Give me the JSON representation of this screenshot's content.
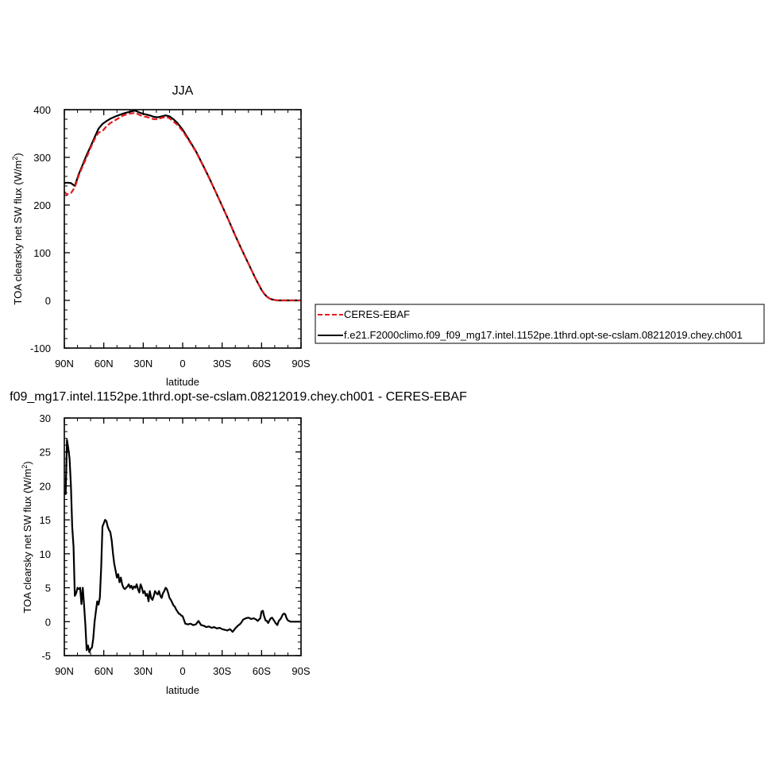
{
  "chart_data": [
    {
      "type": "line",
      "title": "JJA",
      "xlabel": "latitude",
      "ylabel_main": "TOA clearsky net SW flux (W/m",
      "ylabel_sup": "2",
      "ylabel_close": ")",
      "xlim": [
        90,
        -90
      ],
      "ylim": [
        -100,
        400
      ],
      "x_ticks": [
        {
          "value": 90,
          "label": "90N"
        },
        {
          "value": 60,
          "label": "60N"
        },
        {
          "value": 30,
          "label": "30N"
        },
        {
          "value": 0,
          "label": "0"
        },
        {
          "value": -30,
          "label": "30S"
        },
        {
          "value": -60,
          "label": "60S"
        },
        {
          "value": -90,
          "label": "90S"
        }
      ],
      "y_ticks": [
        {
          "value": 400,
          "label": "400"
        },
        {
          "value": 300,
          "label": "300"
        },
        {
          "value": 200,
          "label": "200"
        },
        {
          "value": 100,
          "label": "100"
        },
        {
          "value": 0,
          "label": "0"
        },
        {
          "value": -100,
          "label": "-100"
        }
      ],
      "series": [
        {
          "name": "CERES-EBAF",
          "color": "#e41a1c",
          "dash": true,
          "x": [
            90,
            88,
            85,
            82,
            79,
            76,
            73,
            70,
            67,
            64,
            61,
            58,
            55,
            50,
            45,
            40,
            36,
            32,
            28,
            25,
            22,
            19,
            16,
            13,
            10,
            7,
            4,
            0,
            -5,
            -10,
            -15,
            -20,
            -25,
            -30,
            -35,
            -40,
            -45,
            -50,
            -55,
            -60,
            -62,
            -64,
            -66,
            -68,
            -70,
            -72,
            -75,
            -80,
            -85,
            -90
          ],
          "y": [
            228,
            222,
            225,
            237,
            262,
            282,
            300,
            320,
            338,
            352,
            355,
            365,
            372,
            380,
            388,
            392,
            393,
            388,
            385,
            383,
            380,
            380,
            383,
            385,
            382,
            375,
            368,
            355,
            334,
            312,
            285,
            257,
            228,
            198,
            168,
            136,
            106,
            77,
            48,
            22,
            14,
            8,
            4,
            2,
            1,
            0,
            0,
            0,
            0,
            0
          ]
        },
        {
          "name": "f.e21.F2000climo.f09_f09_mg17.intel.1152pe.1thrd.opt-se-cslam.08212019.chey.ch001",
          "color": "#000000",
          "dash": false,
          "x": [
            90,
            88,
            85,
            82,
            79,
            76,
            73,
            70,
            67,
            64,
            61,
            58,
            55,
            50,
            45,
            40,
            36,
            32,
            28,
            25,
            22,
            19,
            16,
            13,
            10,
            7,
            4,
            0,
            -5,
            -10,
            -15,
            -20,
            -25,
            -30,
            -35,
            -40,
            -45,
            -50,
            -55,
            -60,
            -62,
            -64,
            -66,
            -68,
            -70,
            -72,
            -75,
            -80,
            -85,
            -90
          ],
          "y": [
            246,
            247,
            246,
            240,
            265,
            285,
            305,
            323,
            342,
            360,
            370,
            376,
            381,
            387,
            392,
            396,
            398,
            393,
            390,
            388,
            385,
            384,
            386,
            388,
            386,
            380,
            372,
            358,
            336,
            313,
            286,
            258,
            228,
            198,
            168,
            136,
            106,
            77,
            48,
            22,
            14,
            8,
            4,
            2,
            1,
            0,
            0,
            0,
            0,
            0
          ]
        }
      ],
      "legend_position": "right"
    },
    {
      "type": "line",
      "title": "f09_mg17.intel.1152pe.1thrd.opt-se-cslam.08212019.chey.ch001 - CERES-EBAF",
      "xlabel": "latitude",
      "ylabel_main": "TOA clearsky net SW flux (W/m",
      "ylabel_sup": "2",
      "ylabel_close": ")",
      "xlim": [
        90,
        -90
      ],
      "ylim": [
        -5,
        30
      ],
      "x_ticks": [
        {
          "value": 90,
          "label": "90N"
        },
        {
          "value": 60,
          "label": "60N"
        },
        {
          "value": 30,
          "label": "30N"
        },
        {
          "value": 0,
          "label": "0"
        },
        {
          "value": -30,
          "label": "30S"
        },
        {
          "value": -60,
          "label": "60S"
        },
        {
          "value": -90,
          "label": "90S"
        }
      ],
      "y_ticks": [
        {
          "value": 30,
          "label": "30"
        },
        {
          "value": 25,
          "label": "25"
        },
        {
          "value": 20,
          "label": "20"
        },
        {
          "value": 15,
          "label": "15"
        },
        {
          "value": 10,
          "label": "10"
        },
        {
          "value": 5,
          "label": "5"
        },
        {
          "value": 0,
          "label": "0"
        },
        {
          "value": -5,
          "label": "-5"
        }
      ],
      "series": [
        {
          "color": "#000000",
          "x": [
            90,
            89,
            88,
            87,
            86,
            85,
            84,
            83,
            82,
            81,
            80,
            79,
            78,
            77,
            76,
            75,
            74,
            73,
            72,
            71,
            70,
            69,
            68,
            67,
            66,
            65,
            64,
            63,
            62,
            61,
            60,
            59,
            58,
            57,
            56,
            55,
            54,
            53,
            52,
            51,
            50,
            49,
            48,
            47,
            46,
            45,
            44,
            43,
            42,
            41,
            40,
            39,
            38,
            37,
            36,
            35,
            34,
            33,
            32,
            31,
            30,
            29,
            28,
            27,
            26,
            25,
            24,
            23,
            22,
            21,
            20,
            19,
            18,
            17,
            16,
            15,
            14,
            13,
            12,
            11,
            10,
            9,
            8,
            7,
            6,
            5,
            4,
            3,
            2,
            1,
            0,
            -2,
            -4,
            -6,
            -8,
            -10,
            -12,
            -14,
            -16,
            -18,
            -20,
            -22,
            -24,
            -26,
            -28,
            -30,
            -32,
            -34,
            -36,
            -38,
            -40,
            -42,
            -44,
            -46,
            -48,
            -50,
            -52,
            -54,
            -56,
            -57,
            -58,
            -59,
            -60,
            -61,
            -62,
            -63,
            -64,
            -65,
            -66,
            -67,
            -68,
            -69,
            -70,
            -71,
            -72,
            -73,
            -74,
            -75,
            -76,
            -77,
            -78,
            -79,
            -80,
            -82,
            -84,
            -86,
            -88,
            -90
          ],
          "y": [
            19,
            18.8,
            26.8,
            25.5,
            24,
            20,
            14,
            11,
            3.8,
            4.2,
            5,
            4.8,
            5,
            2.6,
            5,
            2.5,
            -0.5,
            -4.2,
            -3.5,
            -4.5,
            -4,
            -3.8,
            -2.5,
            0,
            1.5,
            3,
            2.5,
            3.5,
            8,
            14,
            14.5,
            15,
            14.8,
            14,
            13.5,
            13.2,
            12,
            10,
            8.5,
            7.5,
            6.5,
            7,
            5.8,
            6.5,
            5.5,
            5,
            4.8,
            5,
            5.2,
            5.5,
            5,
            5.3,
            4.8,
            5.2,
            5,
            5.5,
            4.8,
            4.3,
            5.5,
            5,
            4.2,
            4.5,
            3.8,
            4.1,
            3,
            4.5,
            3.5,
            3.2,
            3.8,
            4.5,
            4.2,
            4,
            4.5,
            3.8,
            3.5,
            4.2,
            4.5,
            5,
            4.8,
            4.2,
            3.5,
            3.2,
            2.8,
            2.4,
            2.2,
            1.8,
            1.5,
            1.2,
            1.1,
            0.9,
            0.8,
            -0.3,
            -0.4,
            -0.3,
            -0.5,
            -0.4,
            0.1,
            -0.5,
            -0.6,
            -0.8,
            -0.7,
            -0.9,
            -0.8,
            -1,
            -0.9,
            -1.1,
            -1.2,
            -1.3,
            -1.1,
            -1.5,
            -1,
            -0.6,
            -0.3,
            0.3,
            0.5,
            0.6,
            0.4,
            0.5,
            0.3,
            0.1,
            0.3,
            0.5,
            1.5,
            1.6,
            0.8,
            0.2,
            0.1,
            -0.2,
            0.2,
            0.5,
            0.6,
            0.3,
            0,
            -0.3,
            -0.5,
            0.1,
            0.3,
            0.6,
            1,
            1.2,
            1.1,
            0.5,
            0.2,
            0,
            0,
            0,
            0,
            0
          ]
        }
      ]
    }
  ]
}
